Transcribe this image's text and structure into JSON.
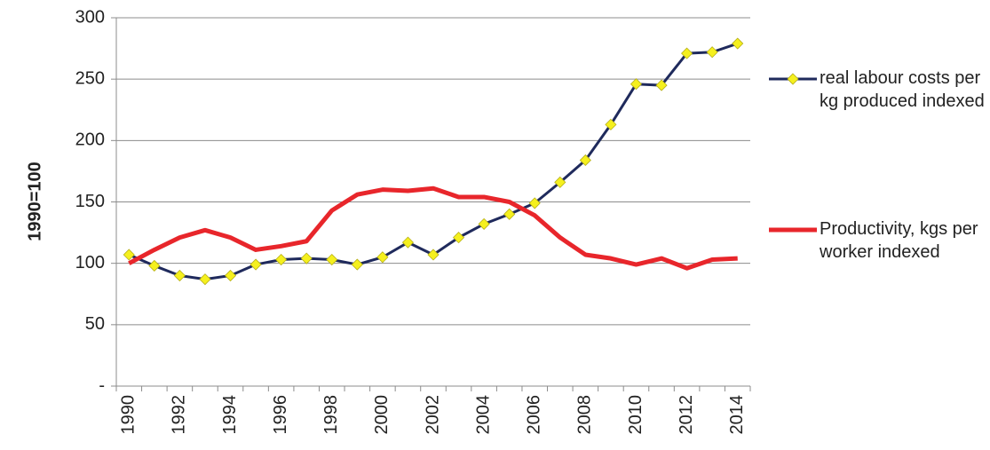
{
  "chart_data": {
    "type": "line",
    "y_label": "1990=100",
    "categories": [
      "1990",
      null,
      "1992",
      null,
      "1994",
      null,
      "1996",
      null,
      "1998",
      null,
      "2000",
      null,
      "2002",
      null,
      "2004",
      null,
      "2006",
      null,
      "2008",
      null,
      "2010",
      null,
      "2012",
      null,
      "2014"
    ],
    "series": [
      {
        "name": "real labour costs per kg produced indexed",
        "color": "#1f2a5c",
        "marker_color": "#f5f01e",
        "values": [
          107,
          98,
          90,
          87,
          90,
          99,
          103,
          104,
          103,
          99,
          105,
          117,
          107,
          121,
          132,
          140,
          149,
          166,
          184,
          213,
          246,
          245,
          271,
          272,
          279
        ]
      },
      {
        "name": "Productivity, kgs per worker indexed",
        "color": "#e8262b",
        "values": [
          100,
          111,
          121,
          127,
          121,
          111,
          114,
          118,
          143,
          156,
          160,
          159,
          161,
          154,
          154,
          150,
          139,
          121,
          107,
          104,
          99,
          104,
          96,
          103,
          104
        ]
      }
    ],
    "ylim": [
      0,
      300
    ],
    "yticks": [
      {
        "value": 0,
        "label": "-"
      },
      50,
      100,
      150,
      200,
      250,
      300
    ],
    "grid": true,
    "legend": "right"
  }
}
